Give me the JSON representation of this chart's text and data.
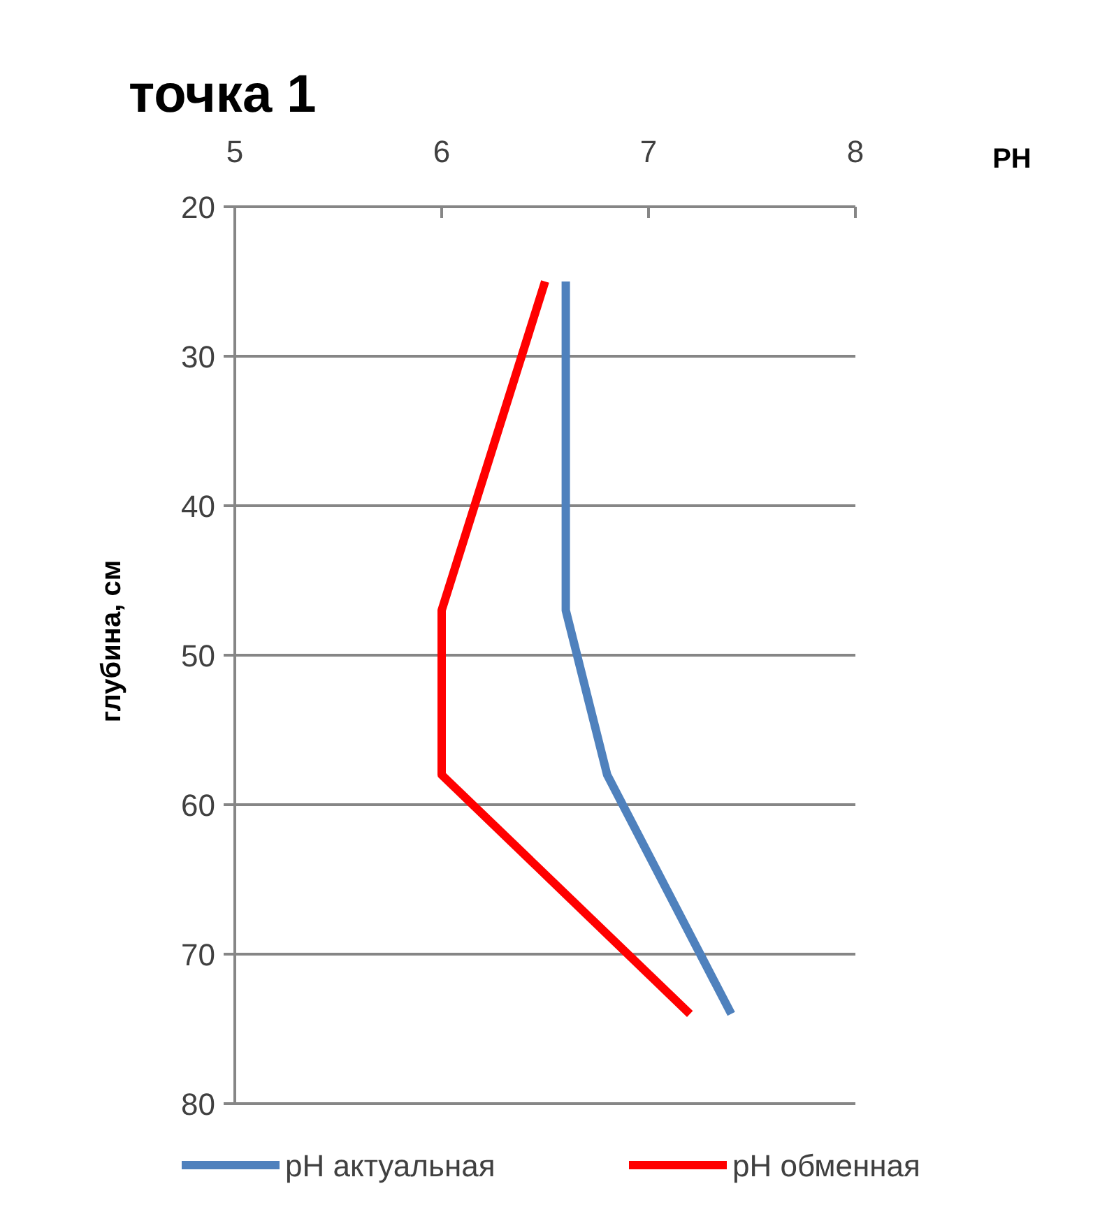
{
  "chart_data": {
    "type": "line",
    "title": "точка 1",
    "xlabel": "PH",
    "ylabel": "глубина, см",
    "xlim": [
      5,
      8
    ],
    "xticks": [
      5,
      6,
      7,
      8
    ],
    "ylim": [
      80,
      20
    ],
    "yticks": [
      20,
      30,
      40,
      50,
      60,
      70,
      80
    ],
    "grid": "y",
    "legend": "bottom",
    "marker": "none",
    "line_style": "solid",
    "series": [
      {
        "name": "pH актуальная",
        "color": "#4f81bd",
        "x": [
          6.6,
          6.6,
          6.8,
          7.4
        ],
        "values": [
          25,
          47,
          58,
          74
        ]
      },
      {
        "name": "pH обменная",
        "color": "#ff0000",
        "x": [
          6.5,
          6.0,
          6.0,
          7.2
        ],
        "values": [
          25,
          47,
          58,
          74
        ]
      }
    ]
  }
}
